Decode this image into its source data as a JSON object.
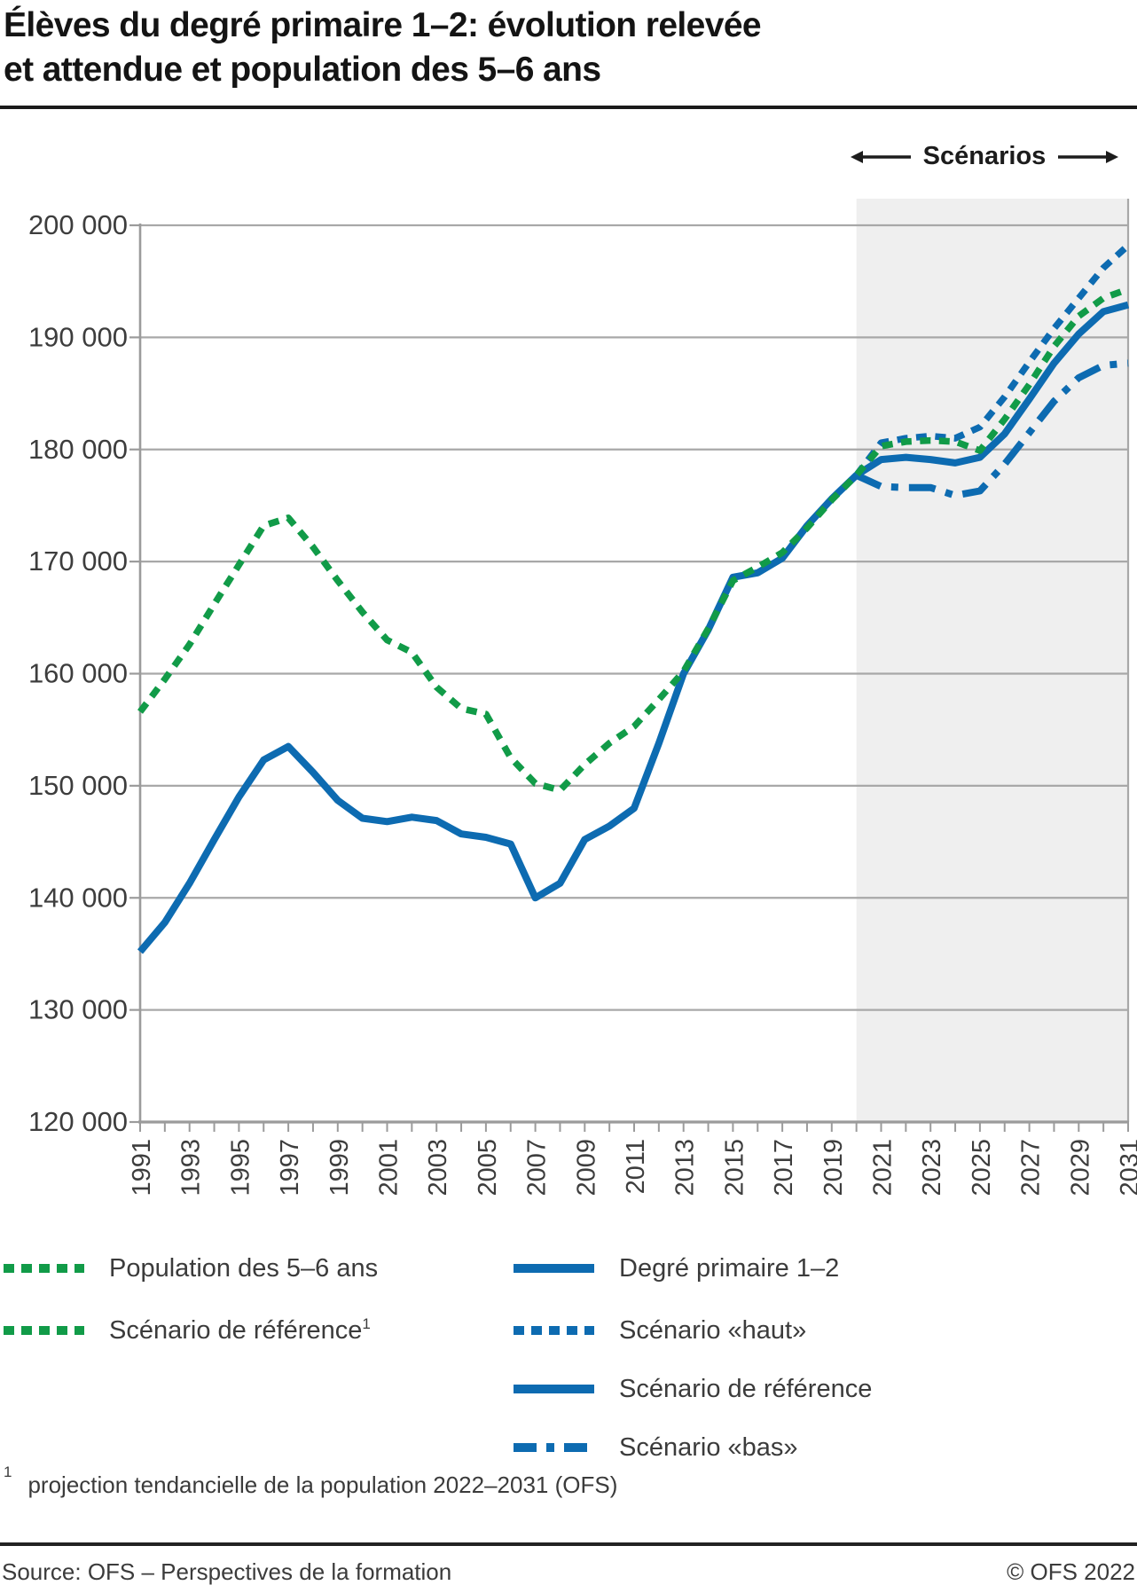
{
  "title": {
    "line1": "Élèves du degré primaire 1–2: évolution relevée",
    "line2": "et attendue et population des 5–6 ans"
  },
  "scenarios_label": "Scénarios",
  "chart_data": {
    "type": "line",
    "xlim": [
      1991,
      2031
    ],
    "ylim": [
      120000,
      200000
    ],
    "ytick_step": 10000,
    "y_tick_labels": [
      "120 000",
      "130 000",
      "140 000",
      "150 000",
      "160 000",
      "170 000",
      "180 000",
      "190 000",
      "200 000"
    ],
    "x_tick_years": [
      1991,
      1993,
      1995,
      1997,
      1999,
      2001,
      2003,
      2005,
      2007,
      2009,
      2011,
      2013,
      2015,
      2017,
      2019,
      2021,
      2023,
      2025,
      2027,
      2029,
      2031
    ],
    "grid": true,
    "shading": {
      "from_year": 2020,
      "to_year": 2031,
      "color": "#efefef",
      "meaning": "Scénarios"
    },
    "colors": {
      "green": "#119b48",
      "blue": "#0d6bb1",
      "grid": "#a8a8a8",
      "axis": "#9b9b9b",
      "text": "#3d3d3d"
    },
    "series": [
      {
        "id": "degre-primaire",
        "name": "Degré primaire 1–2",
        "color": "#0d6bb1",
        "style": "solid",
        "start_year": 1991,
        "values": [
          135200,
          137800,
          141300,
          145200,
          149000,
          152300,
          153500,
          151200,
          148700,
          147100,
          146800,
          147200,
          146900,
          145700,
          145400,
          144800,
          140000,
          141300,
          145200,
          146400,
          148000,
          153800,
          160000,
          163900,
          168600,
          169000,
          170300,
          173200,
          175600,
          177700
        ]
      },
      {
        "id": "scenario-bas",
        "name": "Scénario «bas»",
        "color": "#0d6bb1",
        "style": "dashdot",
        "start_year": 2020,
        "values": [
          177700,
          176700,
          176600,
          176600,
          175900,
          176300,
          178700,
          181500,
          184300,
          186400,
          187500,
          187700
        ]
      },
      {
        "id": "scenario-reference",
        "name": "Scénario de référence",
        "color": "#0d6bb1",
        "style": "solid",
        "start_year": 2020,
        "values": [
          177700,
          179100,
          179300,
          179100,
          178800,
          179300,
          181400,
          184500,
          187700,
          190300,
          192300,
          192900
        ]
      },
      {
        "id": "scenario-haut",
        "name": "Scénario «haut»",
        "color": "#0d6bb1",
        "style": "dotted",
        "start_year": 2020,
        "values": [
          177700,
          180600,
          181000,
          181200,
          181000,
          182000,
          184700,
          187800,
          190800,
          193500,
          196200,
          198200
        ]
      },
      {
        "id": "population-5-6",
        "name": "Population des 5–6 ans / Scénario de référence",
        "color": "#119b48",
        "style": "dotted",
        "start_year": 1991,
        "values": [
          156600,
          159500,
          162600,
          166200,
          169700,
          173200,
          173900,
          171300,
          168300,
          165500,
          163000,
          161900,
          158800,
          156900,
          156400,
          152500,
          150200,
          149600,
          151900,
          153800,
          155300,
          157700,
          160200,
          164000,
          168300,
          169500,
          170800,
          173000,
          175500,
          177700,
          180300,
          180700,
          180800,
          180700,
          179900,
          182700,
          185800,
          189200,
          191900,
          193500,
          194300
        ]
      }
    ]
  },
  "legend": {
    "columns": [
      {
        "items": [
          {
            "label": "Population des 5–6 ans",
            "sup": "",
            "style": "dotted",
            "color": "#119b48"
          },
          {
            "label": "Scénario de référence",
            "sup": "1",
            "style": "dotted",
            "color": "#119b48"
          }
        ]
      },
      {
        "items": [
          {
            "label": "Degré primaire 1–2",
            "sup": "",
            "style": "solid",
            "color": "#0d6bb1"
          },
          {
            "label": "Scénario «haut»",
            "sup": "",
            "style": "dotted",
            "color": "#0d6bb1"
          },
          {
            "label": "Scénario de référence",
            "sup": "",
            "style": "solid",
            "color": "#0d6bb1"
          },
          {
            "label": "Scénario «bas»",
            "sup": "",
            "style": "dashdot",
            "color": "#0d6bb1"
          }
        ]
      }
    ]
  },
  "footnote": {
    "marker": "1",
    "text": "projection tendancielle de la population 2022–2031 (OFS)"
  },
  "footer": {
    "source": "Source: OFS – Perspectives de la formation",
    "copyright": "© OFS 2022"
  }
}
